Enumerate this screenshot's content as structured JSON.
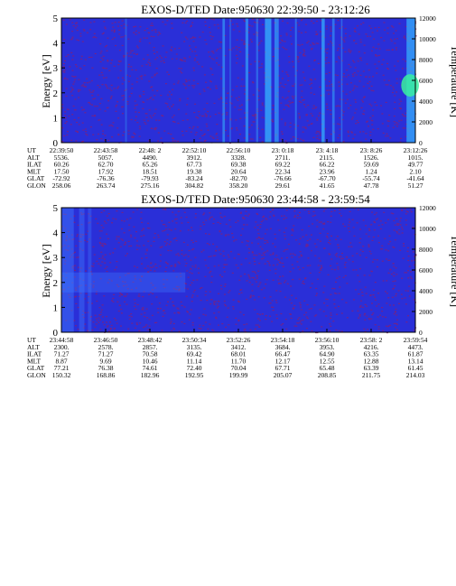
{
  "chart_data": [
    {
      "type": "heatmap",
      "title": "EXOS-D/TED   Date:950630  22:39:50 - 23:12:26",
      "ylabel": "Energy [eV]",
      "ylabel_right": "Temperature [K]",
      "ylim": [
        0,
        5
      ],
      "y_ticks": [
        "0",
        "1",
        "2",
        "3",
        "4",
        "5"
      ],
      "ylim_right": [
        0,
        12000
      ],
      "y_ticks_right": [
        "0",
        "2000",
        "4000",
        "6000",
        "8000",
        "10000",
        "12000"
      ],
      "background_color": "#2a2fd8",
      "noise_color": "#8b1e6e",
      "streak_color": "#36b6ff",
      "hot_color": "#38f0a0",
      "streaks": [
        {
          "x": 0.18,
          "w": 0.005,
          "i": 0.3
        },
        {
          "x": 0.455,
          "w": 0.007,
          "i": 0.55
        },
        {
          "x": 0.475,
          "w": 0.004,
          "i": 0.35
        },
        {
          "x": 0.52,
          "w": 0.008,
          "i": 0.6
        },
        {
          "x": 0.55,
          "w": 0.006,
          "i": 0.4
        },
        {
          "x": 0.575,
          "w": 0.018,
          "i": 0.75
        },
        {
          "x": 0.602,
          "w": 0.012,
          "i": 0.6
        },
        {
          "x": 0.66,
          "w": 0.005,
          "i": 0.45
        },
        {
          "x": 0.735,
          "w": 0.009,
          "i": 0.7
        },
        {
          "x": 0.765,
          "w": 0.007,
          "i": 0.5
        },
        {
          "x": 0.79,
          "w": 0.004,
          "i": 0.4
        },
        {
          "x": 0.975,
          "w": 0.025,
          "i": 0.7
        }
      ],
      "hotspots": [
        {
          "x": 0.985,
          "y": 2.3,
          "rx": 0.025,
          "ry": 0.45
        }
      ],
      "table": {
        "labels": [
          "UT",
          "ALT",
          "ILAT",
          "MLT",
          "GLAT",
          "GLON"
        ],
        "columns": [
          [
            "22:39:50",
            "5536.",
            "60.26",
            "17.50",
            "-72.92",
            "258.06"
          ],
          [
            "22:43:58",
            "5057.",
            "62.70",
            "17.92",
            "-76.36",
            "263.74"
          ],
          [
            "22:48: 2",
            "4490.",
            "65.26",
            "18.51",
            "-79.93",
            "275.16"
          ],
          [
            "22:52:10",
            "3912.",
            "67.73",
            "19.38",
            "-83.24",
            "304.82"
          ],
          [
            "22:56:10",
            "3328.",
            "69.38",
            "20.64",
            "-82.70",
            "358.20"
          ],
          [
            "23: 0:18",
            "2711.",
            "69.22",
            "22.34",
            "-76.66",
            "29.61"
          ],
          [
            "23: 4:18",
            "2115.",
            "66.22",
            "23.96",
            "-67.70",
            "41.65"
          ],
          [
            "23: 8:26",
            "1526.",
            "59.69",
            "1.24",
            "-55.74",
            "47.78"
          ],
          [
            "23:12:26",
            "1015.",
            "49.77",
            "2.10",
            "-41.64",
            "51.27"
          ]
        ]
      }
    },
    {
      "type": "heatmap",
      "title": "EXOS-D/TED   Date:950630  23:44:58 - 23:59:54",
      "ylabel": "Energy [eV]",
      "ylabel_right": "Temperature [K]",
      "ylim": [
        0,
        5
      ],
      "y_ticks": [
        "0",
        "1",
        "2",
        "3",
        "4",
        "5"
      ],
      "ylim_right": [
        0,
        12000
      ],
      "y_ticks_right": [
        "0",
        "2000",
        "4000",
        "6000",
        "8000",
        "10000",
        "12000"
      ],
      "background_color": "#2a2fd8",
      "noise_color": "#8b1e6e",
      "streak_color": "#3f7cff",
      "hot_color": "#3f7cff",
      "band": {
        "y0": 1.6,
        "y1": 2.4,
        "x1": 0.35,
        "i": 0.35
      },
      "streaks": [
        {
          "x": 0.0,
          "w": 0.035,
          "i": 0.45
        },
        {
          "x": 0.05,
          "w": 0.015,
          "i": 0.4
        },
        {
          "x": 0.075,
          "w": 0.01,
          "i": 0.35
        }
      ],
      "hotspots": [],
      "table": {
        "labels": [
          "UT",
          "ALT",
          "ILAT",
          "MLT",
          "GLAT",
          "GLON"
        ],
        "columns": [
          [
            "23:44:58",
            "2300.",
            "71.27",
            "8.87",
            "77.21",
            "150.32"
          ],
          [
            "23:46:50",
            "2578.",
            "71.27",
            "9.69",
            "76.38",
            "168.86"
          ],
          [
            "23:48:42",
            "2857.",
            "70.58",
            "10.46",
            "74.61",
            "182.96"
          ],
          [
            "23:50:34",
            "3135.",
            "69.42",
            "11.14",
            "72.40",
            "192.95"
          ],
          [
            "23:52:26",
            "3412.",
            "68.01",
            "11.70",
            "70.04",
            "199.99"
          ],
          [
            "23:54:18",
            "3684.",
            "66.47",
            "12.17",
            "67.71",
            "205.07"
          ],
          [
            "23:56:10",
            "3953.",
            "64.90",
            "12.55",
            "65.48",
            "208.85"
          ],
          [
            "23:58: 2",
            "4216.",
            "63.35",
            "12.88",
            "63.39",
            "211.75"
          ],
          [
            "23:59:54",
            "4473.",
            "61.87",
            "13.14",
            "61.45",
            "214.03"
          ]
        ]
      }
    }
  ]
}
